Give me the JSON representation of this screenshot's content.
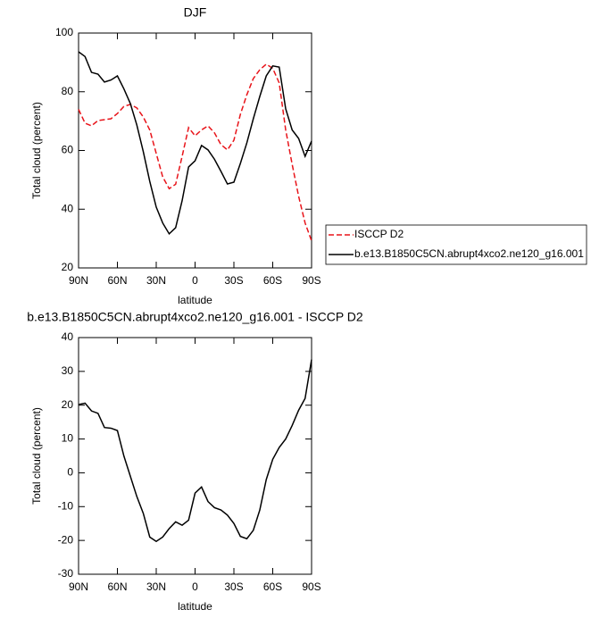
{
  "chart_data": [
    {
      "type": "line",
      "title": "DJF",
      "xlabel": "latitude",
      "ylabel": "Total cloud (percent)",
      "x": [
        90,
        85,
        80,
        75,
        70,
        65,
        60,
        55,
        50,
        45,
        40,
        35,
        30,
        25,
        20,
        15,
        10,
        5,
        0,
        -5,
        -10,
        -15,
        -20,
        -25,
        -30,
        -35,
        -40,
        -45,
        -50,
        -55,
        -60,
        -65,
        -70,
        -75,
        -80,
        -85,
        -90
      ],
      "xlim": [
        90,
        -90
      ],
      "xticks": [
        {
          "value": 90,
          "label": "90N"
        },
        {
          "value": 60,
          "label": "60N"
        },
        {
          "value": 30,
          "label": "30N"
        },
        0,
        {
          "value": -30,
          "label": "30S"
        },
        {
          "value": -60,
          "label": "60S"
        },
        {
          "value": -90,
          "label": "90S"
        }
      ],
      "ylim": [
        20,
        100
      ],
      "yticks": [
        20,
        40,
        60,
        80,
        100
      ],
      "legend": "right",
      "series": [
        {
          "name": "ISCCP D2",
          "color": "#e8141a",
          "linestyle": "dashed",
          "values": [
            74,
            69.3,
            68.4,
            70.2,
            70.5,
            70.8,
            72.6,
            75,
            75.7,
            74.5,
            71.4,
            67,
            59,
            51,
            47,
            48.5,
            58,
            67.8,
            65,
            67,
            68.4,
            66,
            62,
            60.2,
            63.5,
            72.3,
            79,
            84.5,
            87.5,
            89.4,
            88,
            83,
            67,
            55.3,
            44.4,
            35.3,
            29.2
          ]
        },
        {
          "name": "b.e13.B1850C5CN.abrupt4xco2.ne120_g16.001",
          "color": "#000000",
          "linestyle": "solid",
          "values": [
            93.6,
            92,
            86.6,
            86,
            83.3,
            84,
            85.4,
            81,
            76,
            68.7,
            59.6,
            49.5,
            40.7,
            35.3,
            31.6,
            33.7,
            42.9,
            54.4,
            56.5,
            61.7,
            60.2,
            57,
            52.9,
            48.6,
            49.2,
            55.6,
            62.6,
            70.8,
            78.4,
            85.4,
            88.8,
            88.4,
            74.2,
            67,
            64.1,
            58,
            63.2
          ]
        }
      ]
    },
    {
      "type": "line",
      "title": "b.e13.B1850C5CN.abrupt4xco2.ne120_g16.001 - ISCCP D2",
      "xlabel": "latitude",
      "ylabel": "Total cloud (percent)",
      "x": [
        90,
        85,
        80,
        75,
        70,
        65,
        60,
        55,
        50,
        45,
        40,
        35,
        30,
        25,
        20,
        15,
        10,
        5,
        0,
        -5,
        -10,
        -15,
        -20,
        -25,
        -30,
        -35,
        -40,
        -45,
        -50,
        -55,
        -60,
        -65,
        -70,
        -75,
        -80,
        -85,
        -90
      ],
      "xlim": [
        90,
        -90
      ],
      "xticks": [
        {
          "value": 90,
          "label": "90N"
        },
        {
          "value": 60,
          "label": "60N"
        },
        {
          "value": 30,
          "label": "30N"
        },
        0,
        {
          "value": -30,
          "label": "30S"
        },
        {
          "value": -60,
          "label": "60S"
        },
        {
          "value": -90,
          "label": "90S"
        }
      ],
      "ylim": [
        -30,
        40
      ],
      "yticks": [
        -30,
        -20,
        -10,
        0,
        10,
        20,
        30,
        40
      ],
      "series": [
        {
          "color": "#000000",
          "linestyle": "solid",
          "values": [
            20.2,
            20.6,
            18.3,
            17.6,
            13.4,
            13.2,
            12.5,
            5,
            -1,
            -7,
            -12,
            -19,
            -20.3,
            -19,
            -16.5,
            -14.5,
            -15.5,
            -14,
            -6,
            -4.2,
            -8.5,
            -10.3,
            -11,
            -12.5,
            -15,
            -18.8,
            -19.5,
            -17,
            -11,
            -2,
            4,
            7.5,
            10,
            14,
            18.5,
            22,
            33.5
          ]
        }
      ]
    }
  ]
}
